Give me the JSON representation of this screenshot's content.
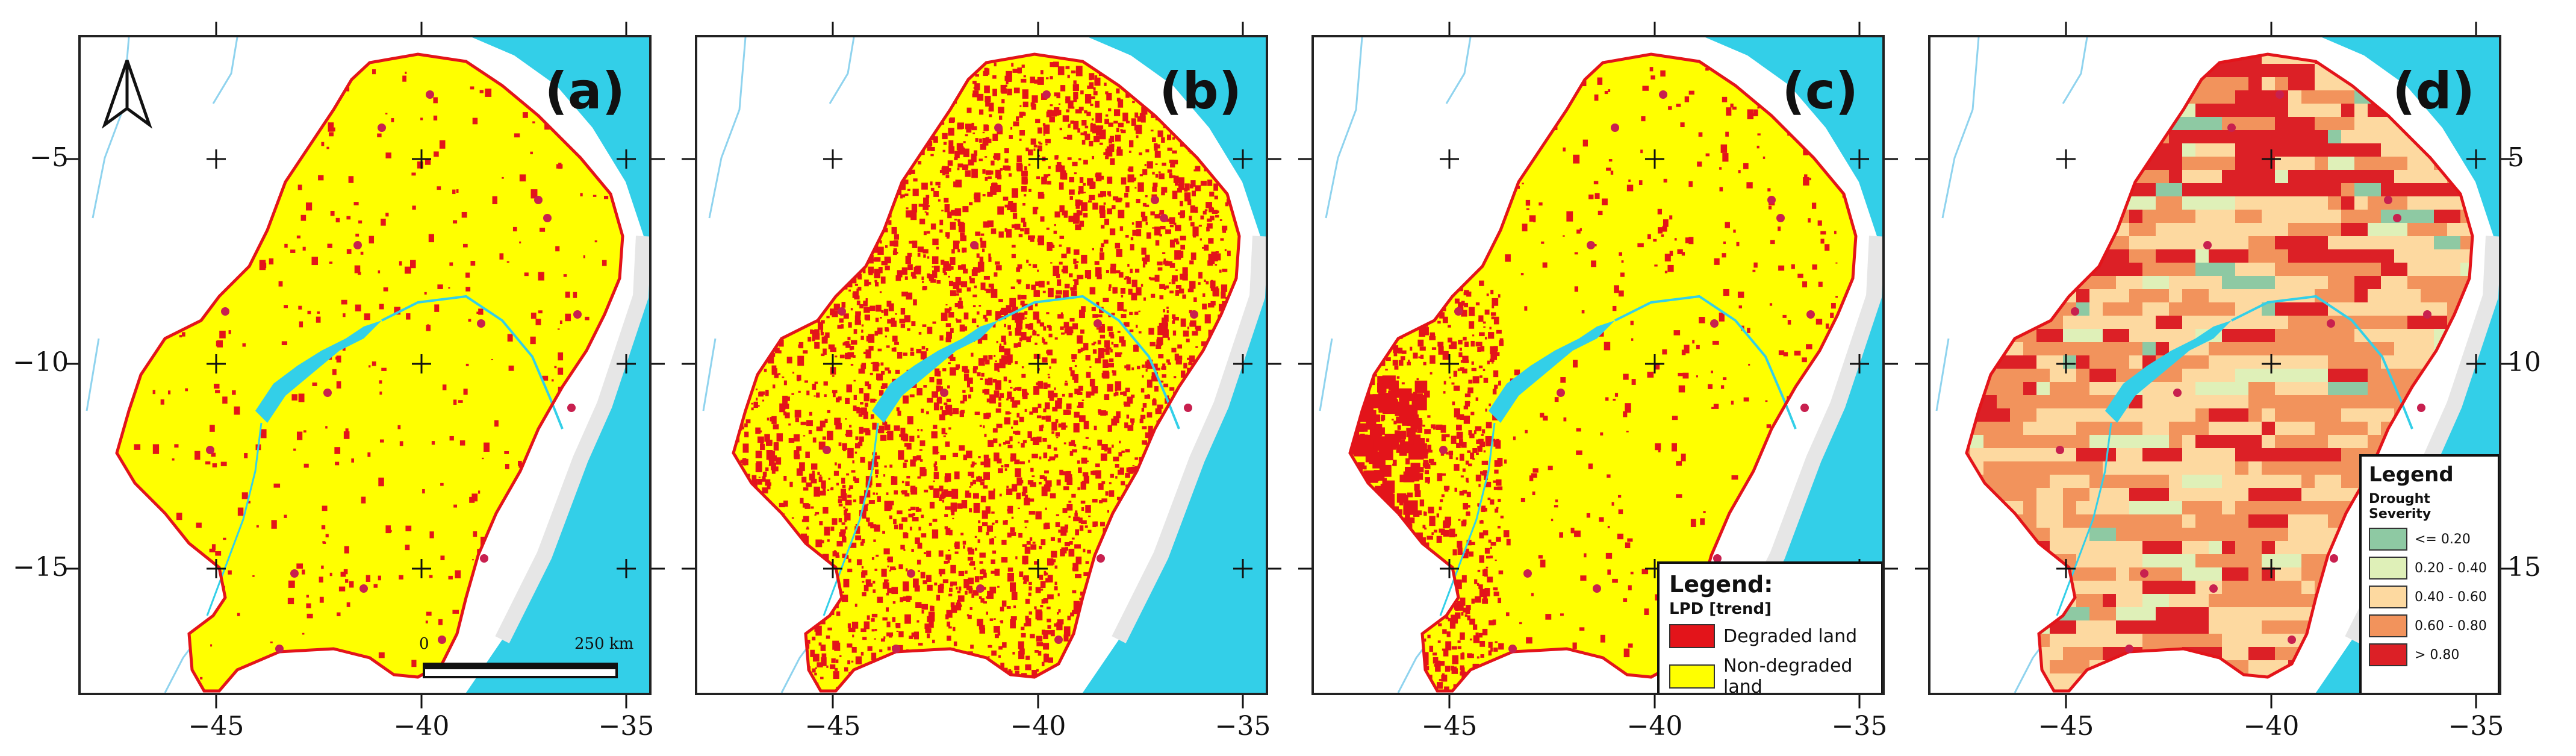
{
  "panels": [
    {
      "id": "a",
      "label": "(a)",
      "pattern": "sparse"
    },
    {
      "id": "b",
      "label": "(b)",
      "pattern": "dense"
    },
    {
      "id": "c",
      "label": "(c)",
      "pattern": "west"
    },
    {
      "id": "d",
      "label": "(d)",
      "pattern": "grid"
    }
  ],
  "x_ticks": [
    "−45",
    "−40",
    "−35"
  ],
  "y_ticks_left": [
    "−5",
    "−10",
    "−15"
  ],
  "y_ticks_right": [
    "5",
    "10",
    "15"
  ],
  "scale_bar": {
    "start": "0",
    "end": "250 km"
  },
  "legend_lpd": {
    "title": "Legend:",
    "subtitle": "LPD [trend]",
    "items": [
      {
        "label": "Degraded land",
        "color": "#e3141a"
      },
      {
        "label": "Non-degraded land",
        "color": "#ffff00"
      }
    ]
  },
  "legend_drought": {
    "title": "Legend",
    "subtitle": "Drought Severity",
    "items": [
      {
        "label": "<= 0.20",
        "color": "#8ec9a3"
      },
      {
        "label": "0.20 - 0.40",
        "color": "#dff0b8"
      },
      {
        "label": "0.40 - 0.60",
        "color": "#fdd9a0"
      },
      {
        "label": "0.60 - 0.80",
        "color": "#f2935c"
      },
      {
        "label": "> 0.80",
        "color": "#dc2026"
      }
    ]
  },
  "colors": {
    "ocean": "#33cfe8",
    "land_outside": "#ffffff",
    "region_fill": "#ffff00",
    "degraded": "#e3141a",
    "boundary": "#e3141a",
    "city_dot": "#c8204f",
    "river": "#8fd3ee"
  }
}
